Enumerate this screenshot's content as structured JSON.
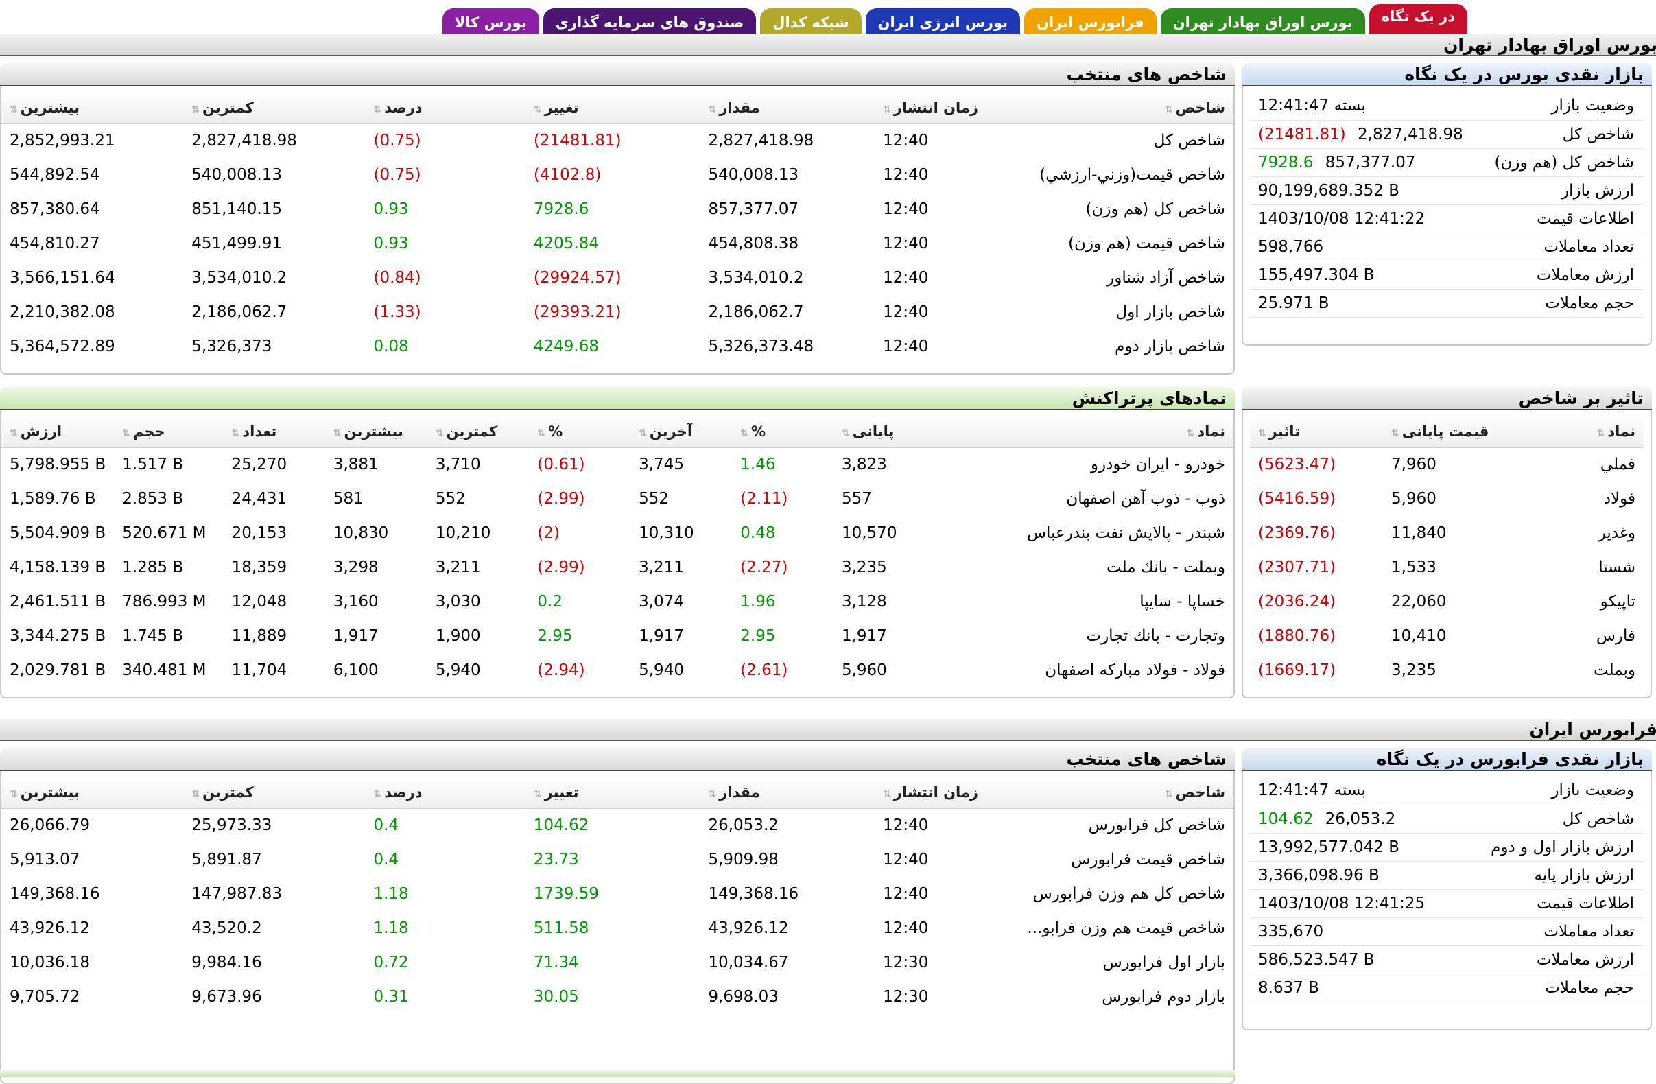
{
  "colors": {
    "tab_red": "#c8102e",
    "tab_green": "#2e8b1f",
    "tab_orange": "#f0a200",
    "tab_blue": "#1f38b5",
    "tab_olive": "#b3a82a",
    "tab_darkpurple": "#4b1470",
    "tab_purple": "#8a1fa3"
  },
  "tabs": [
    {
      "label": "در یک نگاه",
      "color": "#c8102e"
    },
    {
      "label": "بورس اوراق بهادار تهران",
      "color": "#2e8b1f"
    },
    {
      "label": "فرابورس ایران",
      "color": "#f0a200"
    },
    {
      "label": "بورس انرژی ایران",
      "color": "#1f38b5"
    },
    {
      "label": "شبکه کدال",
      "color": "#b3a82a"
    },
    {
      "label": "صندوق های سرمایه گذاری",
      "color": "#4b1470"
    },
    {
      "label": "بورس کالا",
      "color": "#8a1fa3"
    }
  ],
  "tehran": {
    "title": "بورس اوراق بهادار تهران",
    "overview": {
      "title": "بازار نقدی بورس در یک نگاه",
      "rows": [
        {
          "k": "وضعیت بازار",
          "v": "بسته 12:41:47",
          "chg": ""
        },
        {
          "k": "شاخص کل",
          "v": "2,827,418.98",
          "chg": "(21481.81)",
          "dir": "red"
        },
        {
          "k": "شاخص کل (هم وزن)",
          "v": "857,377.07",
          "chg": "7928.6",
          "dir": "grn"
        },
        {
          "k": "ارزش بازار",
          "v": "90,199,689.352 B",
          "chg": ""
        },
        {
          "k": "اطلاعات قیمت",
          "v": "1403/10/08 12:41:22",
          "chg": ""
        },
        {
          "k": "تعداد معاملات",
          "v": "598,766",
          "chg": ""
        },
        {
          "k": "ارزش معاملات",
          "v": "155,497.304 B",
          "chg": ""
        },
        {
          "k": "حجم معاملات",
          "v": "25.971 B",
          "chg": ""
        }
      ]
    },
    "indices": {
      "title": "شاخص های منتخب",
      "headers": [
        "شاخص",
        "زمان انتشار",
        "مقدار",
        "تغییر",
        "درصد",
        "کمترین",
        "بیشترین"
      ],
      "rows": [
        [
          "شاخص كل",
          "12:40",
          "2,827,418.98",
          "(21481.81)",
          "(0.75)",
          "2,827,418.98",
          "2,852,993.21",
          "red"
        ],
        [
          "شاخص قيمت(وزني-ارزشي)",
          "12:40",
          "540,008.13",
          "(4102.8)",
          "(0.75)",
          "540,008.13",
          "544,892.54",
          "red"
        ],
        [
          "شاخص كل (هم وزن)",
          "12:40",
          "857,377.07",
          "7928.6",
          "0.93",
          "851,140.15",
          "857,380.64",
          "grn"
        ],
        [
          "شاخص قيمت (هم وزن)",
          "12:40",
          "454,808.38",
          "4205.84",
          "0.93",
          "451,499.91",
          "454,810.27",
          "grn"
        ],
        [
          "شاخص آزاد شناور",
          "12:40",
          "3,534,010.2",
          "(29924.57)",
          "(0.84)",
          "3,534,010.2",
          "3,566,151.64",
          "red"
        ],
        [
          "شاخص بازار اول",
          "12:40",
          "2,186,062.7",
          "(29393.21)",
          "(1.33)",
          "2,186,062.7",
          "2,210,382.08",
          "red"
        ],
        [
          "شاخص بازار دوم",
          "12:40",
          "5,326,373.48",
          "4249.68",
          "0.08",
          "5,326,373",
          "5,364,572.89",
          "grn"
        ]
      ]
    },
    "impact": {
      "title": "تاثیر بر شاخص",
      "headers": [
        "نماد",
        "قیمت پایانی",
        "تاثیر"
      ],
      "rows": [
        [
          "فملي",
          "7,960",
          "(5623.47)"
        ],
        [
          "فولاد",
          "5,960",
          "(5416.59)"
        ],
        [
          "وغدير",
          "11,840",
          "(2369.76)"
        ],
        [
          "شستا",
          "1,533",
          "(2307.71)"
        ],
        [
          "تاپيكو",
          "22,060",
          "(2036.24)"
        ],
        [
          "فارس",
          "10,410",
          "(1880.76)"
        ],
        [
          "وبملت",
          "3,235",
          "(1669.17)"
        ]
      ]
    },
    "active": {
      "title": "نمادهای پرتراکنش",
      "headers": [
        "نماد",
        "پایانی",
        "%",
        "آخرین",
        "%",
        "کمترین",
        "بیشترین",
        "تعداد",
        "حجم",
        "ارزش"
      ],
      "rows": [
        [
          "خودرو - ايران خودرو",
          "3,823",
          "1.46",
          "grn",
          "3,745",
          "(0.61)",
          "red",
          "3,710",
          "3,881",
          "25,270",
          "1.517 B",
          "5,798.955 B"
        ],
        [
          "ذوب - ذوب آهن اصفهان",
          "557",
          "(2.11)",
          "red",
          "552",
          "(2.99)",
          "red",
          "552",
          "581",
          "24,431",
          "2.853 B",
          "1,589.76 B"
        ],
        [
          "شبندر - پالايش نفت بندرعباس",
          "10,570",
          "0.48",
          "grn",
          "10,310",
          "(2)",
          "red",
          "10,210",
          "10,830",
          "20,153",
          "520.671 M",
          "5,504.909 B"
        ],
        [
          "وبملت - بانك ملت",
          "3,235",
          "(2.27)",
          "red",
          "3,211",
          "(2.99)",
          "red",
          "3,211",
          "3,298",
          "18,359",
          "1.285 B",
          "4,158.139 B"
        ],
        [
          "خساپا - سايپا",
          "3,128",
          "1.96",
          "grn",
          "3,074",
          "0.2",
          "grn",
          "3,030",
          "3,160",
          "12,048",
          "786.993 M",
          "2,461.511 B"
        ],
        [
          "وتجارت - بانك تجارت",
          "1,917",
          "2.95",
          "grn",
          "1,917",
          "2.95",
          "grn",
          "1,900",
          "1,917",
          "11,889",
          "1.745 B",
          "3,344.275 B"
        ],
        [
          "فولاد - فولاد مباركه اصفهان",
          "5,960",
          "(2.61)",
          "red",
          "5,940",
          "(2.94)",
          "red",
          "5,940",
          "6,100",
          "11,704",
          "340.481 M",
          "2,029.781 B"
        ]
      ]
    }
  },
  "farabourse": {
    "title": "فرابورس ایران",
    "overview": {
      "title": "بازار نقدی فرابورس در یک نگاه",
      "rows": [
        {
          "k": "وضعیت بازار",
          "v": "بسته 12:41:47",
          "chg": ""
        },
        {
          "k": "شاخص کل",
          "v": "26,053.2",
          "chg": "104.62",
          "dir": "grn"
        },
        {
          "k": "ارزش بازار اول و دوم",
          "v": "13,992,577.042 B",
          "chg": ""
        },
        {
          "k": "ارزش بازار پایه",
          "v": "3,366,098.96 B",
          "chg": ""
        },
        {
          "k": "اطلاعات قیمت",
          "v": "1403/10/08 12:41:25",
          "chg": ""
        },
        {
          "k": "تعداد معاملات",
          "v": "335,670",
          "chg": ""
        },
        {
          "k": "ارزش معاملات",
          "v": "586,523.547 B",
          "chg": ""
        },
        {
          "k": "حجم معاملات",
          "v": "8.637 B",
          "chg": ""
        }
      ]
    },
    "indices": {
      "title": "شاخص های منتخب",
      "headers": [
        "شاخص",
        "زمان انتشار",
        "مقدار",
        "تغییر",
        "درصد",
        "کمترین",
        "بیشترین"
      ],
      "rows": [
        [
          "شاخص كل فرابورس",
          "12:40",
          "26,053.2",
          "104.62",
          "0.4",
          "25,973.33",
          "26,066.79",
          "grn"
        ],
        [
          "شاخص قيمت فرابورس",
          "12:40",
          "5,909.98",
          "23.73",
          "0.4",
          "5,891.87",
          "5,913.07",
          "grn"
        ],
        [
          "شاخص كل هم وزن فرابورس",
          "12:40",
          "149,368.16",
          "1739.59",
          "1.18",
          "147,987.83",
          "149,368.16",
          "grn"
        ],
        [
          "شاخص قيمت هم وزن فرابو...",
          "12:40",
          "43,926.12",
          "511.58",
          "1.18",
          "43,520.2",
          "43,926.12",
          "grn"
        ],
        [
          "بازار اول فرابورس",
          "12:30",
          "10,034.67",
          "71.34",
          "0.72",
          "9,984.16",
          "10,036.18",
          "grn"
        ],
        [
          "بازار دوم فرابورس",
          "12:30",
          "9,698.03",
          "30.05",
          "0.31",
          "9,673.96",
          "9,705.72",
          "grn"
        ]
      ]
    }
  }
}
